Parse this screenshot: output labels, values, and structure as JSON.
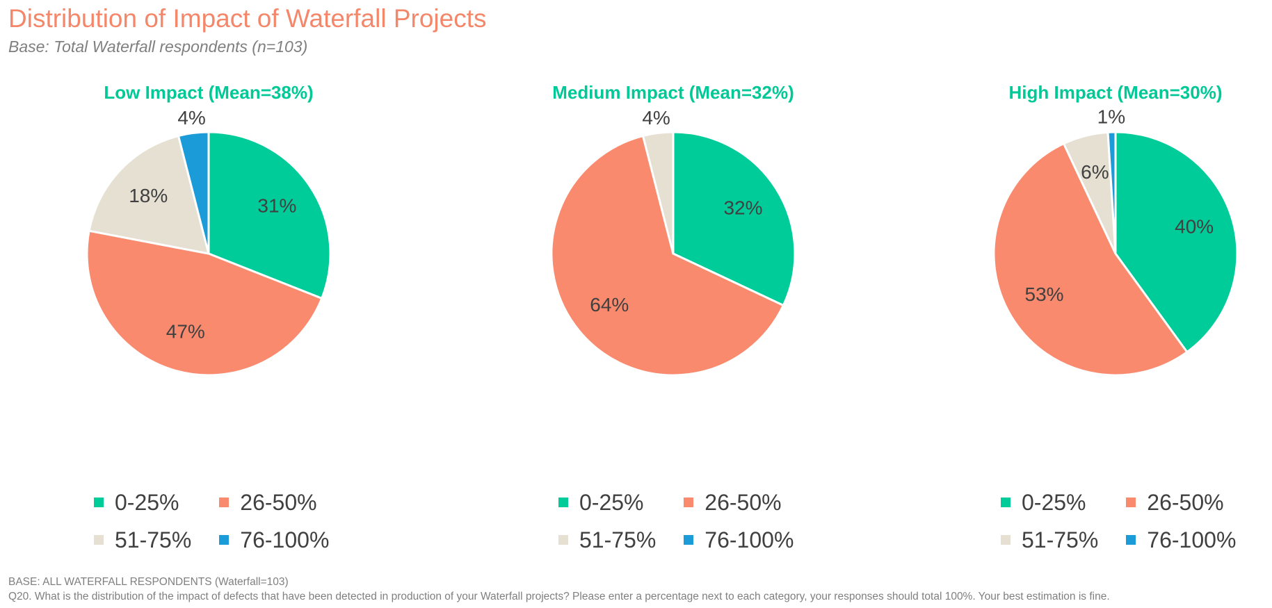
{
  "header": {
    "title": "Distribution of Impact of Waterfall Projects",
    "subtitle": "Base: Total Waterfall respondents (n=103)"
  },
  "colors": {
    "0-25%": "#00CC99",
    "26-50%": "#FA8A6E",
    "51-75%": "#E5E0D2",
    "76-100%": "#1C9BD9",
    "title": "#F4876A",
    "chart_title": "#00C896"
  },
  "chart_data": [
    {
      "type": "pie",
      "title": "Low Impact (Mean=38%)",
      "categories": [
        "0-25%",
        "26-50%",
        "51-75%",
        "76-100%"
      ],
      "values": [
        31,
        47,
        18,
        4
      ],
      "labels": [
        "31%",
        "47%",
        "18%",
        "4%"
      ]
    },
    {
      "type": "pie",
      "title": "Medium Impact (Mean=32%)",
      "categories": [
        "0-25%",
        "26-50%",
        "51-75%",
        "76-100%"
      ],
      "values": [
        32,
        64,
        4,
        0
      ],
      "labels": [
        "32%",
        "64%",
        "4%",
        ""
      ]
    },
    {
      "type": "pie",
      "title": "High Impact (Mean=30%)",
      "categories": [
        "0-25%",
        "26-50%",
        "51-75%",
        "76-100%"
      ],
      "values": [
        40,
        53,
        6,
        1
      ],
      "labels": [
        "40%",
        "53%",
        "6%",
        "1%"
      ]
    }
  ],
  "legend": [
    "0-25%",
    "26-50%",
    "51-75%",
    "76-100%"
  ],
  "footer": {
    "base": "BASE: ALL WATERFALL RESPONDENTS (Waterfall=103)",
    "question": "Q20. What is the distribution of the impact of defects that have been detected in production of your Waterfall projects? Please enter a percentage next to each category, your responses should total 100%. Your best estimation is fine."
  }
}
